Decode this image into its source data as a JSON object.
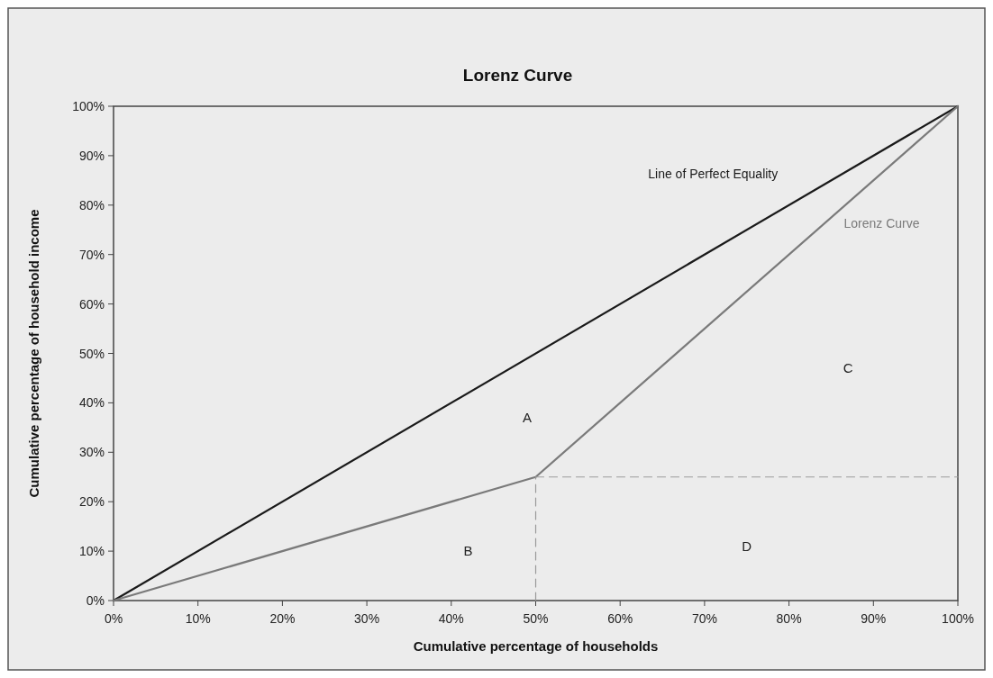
{
  "chart_data": {
    "type": "line",
    "title": "Lorenz Curve",
    "xlabel": "Cumulative percentage of households",
    "ylabel": "Cumulative percentage of household income",
    "xlim": [
      0,
      100
    ],
    "ylim": [
      0,
      100
    ],
    "xticks": [
      {
        "value": 0,
        "label": "0%"
      },
      {
        "value": 10,
        "label": "10%"
      },
      {
        "value": 20,
        "label": "20%"
      },
      {
        "value": 30,
        "label": "30%"
      },
      {
        "value": 40,
        "label": "40%"
      },
      {
        "value": 50,
        "label": "50%"
      },
      {
        "value": 60,
        "label": "60%"
      },
      {
        "value": 70,
        "label": "70%"
      },
      {
        "value": 80,
        "label": "80%"
      },
      {
        "value": 90,
        "label": "90%"
      },
      {
        "value": 100,
        "label": "100%"
      }
    ],
    "yticks": [
      {
        "value": 0,
        "label": "0%"
      },
      {
        "value": 10,
        "label": "10%"
      },
      {
        "value": 20,
        "label": "20%"
      },
      {
        "value": 30,
        "label": "30%"
      },
      {
        "value": 40,
        "label": "40%"
      },
      {
        "value": 50,
        "label": "50%"
      },
      {
        "value": 60,
        "label": "60%"
      },
      {
        "value": 70,
        "label": "70%"
      },
      {
        "value": 80,
        "label": "80%"
      },
      {
        "value": 90,
        "label": "90%"
      },
      {
        "value": 100,
        "label": "100%"
      }
    ],
    "series": [
      {
        "name": "Line of Perfect Equality",
        "color": "#1a1a1a",
        "x": [
          0,
          100
        ],
        "values": [
          0,
          100
        ]
      },
      {
        "name": "Lorenz Curve",
        "color": "#7a7a7a",
        "x": [
          0,
          50,
          100
        ],
        "values": [
          0,
          25,
          100
        ]
      },
      {
        "color": "#9a9a9a",
        "line_style": "dashed",
        "x": [
          50,
          50
        ],
        "values": [
          0,
          25
        ]
      },
      {
        "color": "#9a9a9a",
        "line_style": "dashed",
        "x": [
          50,
          100
        ],
        "values": [
          25,
          25
        ]
      }
    ],
    "annotations": [
      "A",
      "B",
      "C",
      "D"
    ],
    "grid": false,
    "marker": "none"
  }
}
